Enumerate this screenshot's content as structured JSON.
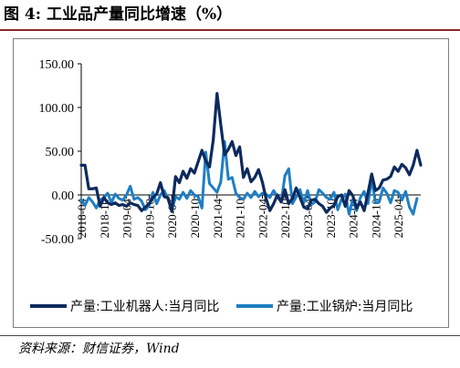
{
  "figure": {
    "title": "图 4:  工业品产量同比增速（%）",
    "source": "资料来源：财信证券，Wind"
  },
  "colors": {
    "series1": "#0d2a5e",
    "series2": "#1f7ec4",
    "axis": "#000000",
    "frame": "#7f7f7f",
    "title_rule": "#8a2a2a"
  },
  "chart_data": {
    "type": "line",
    "title": "",
    "xlabel": "",
    "ylabel": "",
    "ylim": [
      -50,
      150
    ],
    "yticks": [
      "150.00",
      "100.00",
      "50.00",
      "0.00",
      "-50.00"
    ],
    "yticks_values": [
      150,
      100,
      50,
      0,
      -50
    ],
    "xticks": [
      "2018-04",
      "2018-10",
      "2019-04",
      "2019-10",
      "2020-04",
      "2020-10",
      "2021-04",
      "2021-10",
      "2022-04",
      "2022-10",
      "2023-04",
      "2023-10",
      "2024-04",
      "2024-10",
      "2025-04"
    ],
    "x_start": "2018-04",
    "x_end": "2025-05",
    "grid": false,
    "legend_position": "bottom",
    "series": [
      {
        "name": "产量:工业机器人:当月同比",
        "values": [
          34,
          34,
          7,
          7,
          8,
          -13,
          -3,
          -9,
          -11,
          -9,
          -12,
          -11,
          -13,
          -9,
          -11,
          -12,
          -18,
          -14,
          -10,
          -3,
          1,
          14,
          -2,
          -3,
          -19,
          21,
          14,
          27,
          19,
          30,
          25,
          38,
          51,
          39,
          32,
          63,
          116,
          80,
          46,
          52,
          61,
          45,
          55,
          20,
          30,
          15,
          20,
          29,
          15,
          -4,
          -18,
          -10,
          0,
          -8,
          6,
          -10,
          -4,
          8,
          -3,
          -14,
          -16,
          -6,
          -5,
          -10,
          -13,
          -20,
          -15,
          -12,
          -2,
          0,
          -13,
          5,
          -1,
          -15,
          -8,
          -18,
          2,
          24,
          5,
          8,
          17,
          18,
          21,
          32,
          27,
          35,
          31,
          23,
          34,
          51,
          34
        ]
      },
      {
        "name": "产量:工业锅炉:当月同比",
        "values": [
          -5,
          -12,
          -3,
          -8,
          -15,
          -6,
          -3,
          2,
          -9,
          1,
          -4,
          -6,
          0,
          10,
          -5,
          -3,
          -7,
          -17,
          -12,
          3,
          -10,
          0,
          5,
          -5,
          -18,
          -2,
          -5,
          3,
          -4,
          5,
          0,
          -2,
          -15,
          49,
          13,
          8,
          3,
          15,
          61,
          18,
          20,
          2,
          -3,
          -5,
          2,
          -3,
          4,
          -2,
          2,
          1,
          -3,
          5,
          -2,
          -8,
          22,
          30,
          -10,
          -2,
          6,
          -9,
          5,
          -11,
          -8,
          6,
          2,
          -3,
          -5,
          3,
          -17,
          -5,
          1,
          -22,
          -5,
          -18,
          -3,
          4,
          -10,
          18,
          -9,
          -8,
          8,
          2,
          -9,
          5,
          3,
          -6,
          4,
          -14,
          -22,
          -4
        ]
      }
    ]
  }
}
